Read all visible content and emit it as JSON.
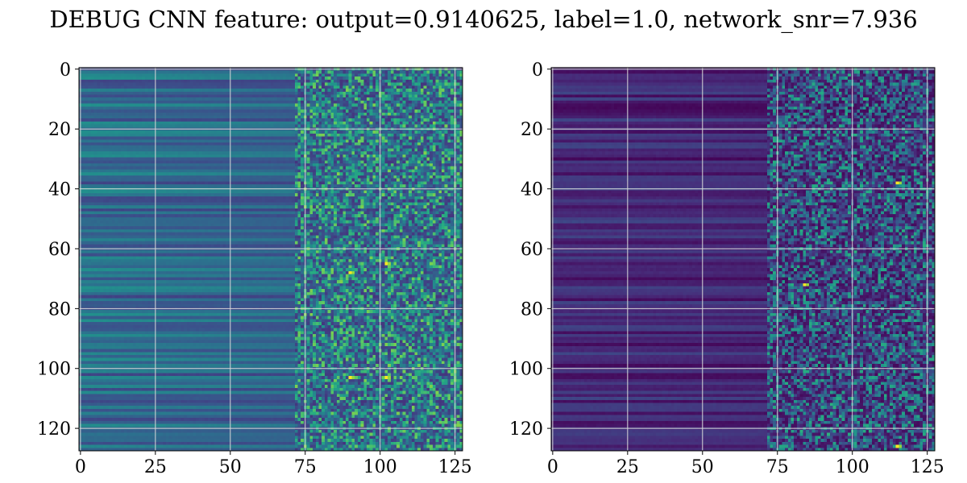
{
  "figure": {
    "title": "DEBUG CNN feature: output=0.9140625, label=1.0, network_snr=7.936"
  },
  "chart_data": [
    {
      "type": "heatmap",
      "name": "left",
      "title": "",
      "xlabel": "",
      "ylabel": "",
      "xlim": [
        0,
        127
      ],
      "ylim": [
        127,
        0
      ],
      "rows": 128,
      "cols": 128,
      "xticks": [
        0,
        25,
        50,
        75,
        100,
        125
      ],
      "yticks": [
        0,
        20,
        40,
        60,
        80,
        100,
        120
      ],
      "grid": true,
      "colormap": "viridis",
      "description_values": {
        "smooth_region_cols": [
          0,
          72
        ],
        "noisy_region_cols": [
          75,
          127
        ],
        "bright_pixels": [
          [
            65,
            102
          ],
          [
            68,
            90
          ],
          [
            103,
            90
          ],
          [
            103,
            102
          ]
        ]
      }
    },
    {
      "type": "heatmap",
      "name": "right",
      "title": "",
      "xlabel": "",
      "ylabel": "",
      "xlim": [
        0,
        127
      ],
      "ylim": [
        127,
        0
      ],
      "rows": 128,
      "cols": 128,
      "xticks": [
        0,
        25,
        50,
        75,
        100,
        125
      ],
      "yticks": [
        0,
        20,
        40,
        60,
        80,
        100,
        120
      ],
      "grid": true,
      "colormap": "viridis",
      "description_values": {
        "smooth_region_cols": [
          0,
          72
        ],
        "noisy_region_cols": [
          75,
          127
        ],
        "bright_pixels": [
          [
            72,
            84
          ],
          [
            126,
            115
          ],
          [
            38,
            115
          ]
        ]
      }
    }
  ],
  "colors": {
    "viridis_low": "#440154",
    "viridis_mid": "#21918c",
    "viridis_high": "#fde725",
    "grid": "#d9d9d9"
  }
}
